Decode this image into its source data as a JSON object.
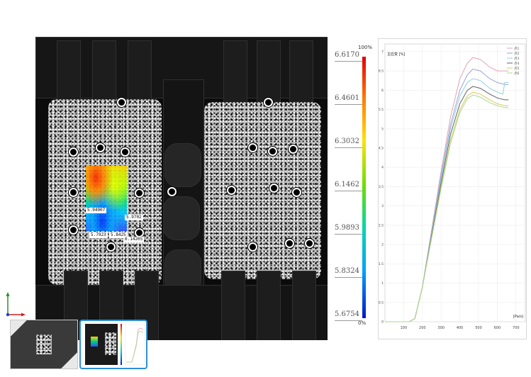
{
  "colorbar": {
    "values": [
      "6.6170",
      "6.4601",
      "6.3032",
      "6.1462",
      "5.9893",
      "5.8324",
      "5.6754"
    ],
    "top_label": "100%",
    "bottom_label": "0%"
  },
  "probes": [
    {
      "label": "5.94907"
    },
    {
      "label": "5.9702"
    },
    {
      "label": "5.7923"
    },
    {
      "label": "5.8425"
    },
    {
      "label": "6.14205"
    }
  ],
  "chart_data": {
    "type": "line",
    "ylabel": "主应变 [%]",
    "xlabel": "[Pa/s]",
    "x_ticks": [
      "100",
      "200",
      "300",
      "400",
      "500",
      "600",
      "700"
    ],
    "y_ticks": [
      "0",
      "0.5",
      "1",
      "1.5",
      "2",
      "2.5",
      "3",
      "3.5",
      "4",
      "4.5",
      "5",
      "5.5",
      "6",
      "6.5",
      "7"
    ],
    "xlim": [
      0,
      750
    ],
    "ylim": [
      0,
      7.2
    ],
    "legend_position": "top-right",
    "grid": true,
    "series": [
      {
        "name": "点1",
        "color": "#e6a0b4",
        "points": [
          [
            0,
            0
          ],
          [
            130,
            0
          ],
          [
            160,
            0.08
          ],
          [
            200,
            0.9
          ],
          [
            250,
            2.4
          ],
          [
            300,
            3.9
          ],
          [
            350,
            5.3
          ],
          [
            400,
            6.3
          ],
          [
            440,
            6.7
          ],
          [
            470,
            6.85
          ],
          [
            510,
            6.8
          ],
          [
            560,
            6.6
          ],
          [
            600,
            6.5
          ],
          [
            640,
            6.5
          ],
          [
            660,
            6.5
          ]
        ]
      },
      {
        "name": "点2",
        "color": "#9aa4d8",
        "points": [
          [
            0,
            0
          ],
          [
            130,
            0
          ],
          [
            160,
            0.08
          ],
          [
            200,
            0.9
          ],
          [
            250,
            2.35
          ],
          [
            300,
            3.8
          ],
          [
            350,
            5.1
          ],
          [
            400,
            6.0
          ],
          [
            440,
            6.4
          ],
          [
            470,
            6.55
          ],
          [
            510,
            6.5
          ],
          [
            560,
            6.3
          ],
          [
            600,
            6.2
          ],
          [
            640,
            6.15
          ],
          [
            660,
            6.15
          ]
        ]
      },
      {
        "name": "点3",
        "color": "#8fd0e0",
        "points": [
          [
            0,
            0
          ],
          [
            130,
            0
          ],
          [
            160,
            0.08
          ],
          [
            200,
            0.9
          ],
          [
            250,
            2.3
          ],
          [
            300,
            3.7
          ],
          [
            350,
            5.0
          ],
          [
            400,
            5.85
          ],
          [
            440,
            6.2
          ],
          [
            470,
            6.3
          ],
          [
            510,
            6.25
          ],
          [
            560,
            6.05
          ],
          [
            600,
            5.95
          ],
          [
            630,
            5.9
          ],
          [
            640,
            6.2
          ],
          [
            660,
            6.2
          ]
        ]
      },
      {
        "name": "点4",
        "color": "#606060",
        "points": [
          [
            0,
            0
          ],
          [
            130,
            0
          ],
          [
            160,
            0.08
          ],
          [
            200,
            0.9
          ],
          [
            250,
            2.25
          ],
          [
            300,
            3.6
          ],
          [
            350,
            4.85
          ],
          [
            400,
            5.65
          ],
          [
            440,
            6.0
          ],
          [
            470,
            6.1
          ],
          [
            510,
            6.05
          ],
          [
            560,
            5.9
          ],
          [
            600,
            5.8
          ],
          [
            640,
            5.75
          ],
          [
            660,
            5.75
          ]
        ]
      },
      {
        "name": "点5",
        "color": "#d8c860",
        "points": [
          [
            0,
            0
          ],
          [
            130,
            0
          ],
          [
            160,
            0.08
          ],
          [
            200,
            0.9
          ],
          [
            250,
            2.2
          ],
          [
            300,
            3.5
          ],
          [
            350,
            4.7
          ],
          [
            400,
            5.5
          ],
          [
            440,
            5.85
          ],
          [
            470,
            5.95
          ],
          [
            510,
            5.9
          ],
          [
            560,
            5.75
          ],
          [
            600,
            5.65
          ],
          [
            640,
            5.6
          ],
          [
            660,
            5.6
          ]
        ]
      },
      {
        "name": "点6",
        "color": "#a8d890",
        "points": [
          [
            0,
            0
          ],
          [
            130,
            0
          ],
          [
            160,
            0.08
          ],
          [
            200,
            0.9
          ],
          [
            250,
            2.18
          ],
          [
            300,
            3.45
          ],
          [
            350,
            4.62
          ],
          [
            400,
            5.42
          ],
          [
            440,
            5.78
          ],
          [
            470,
            5.88
          ],
          [
            510,
            5.82
          ],
          [
            560,
            5.68
          ],
          [
            600,
            5.6
          ],
          [
            640,
            5.55
          ],
          [
            660,
            5.55
          ]
        ]
      }
    ]
  }
}
